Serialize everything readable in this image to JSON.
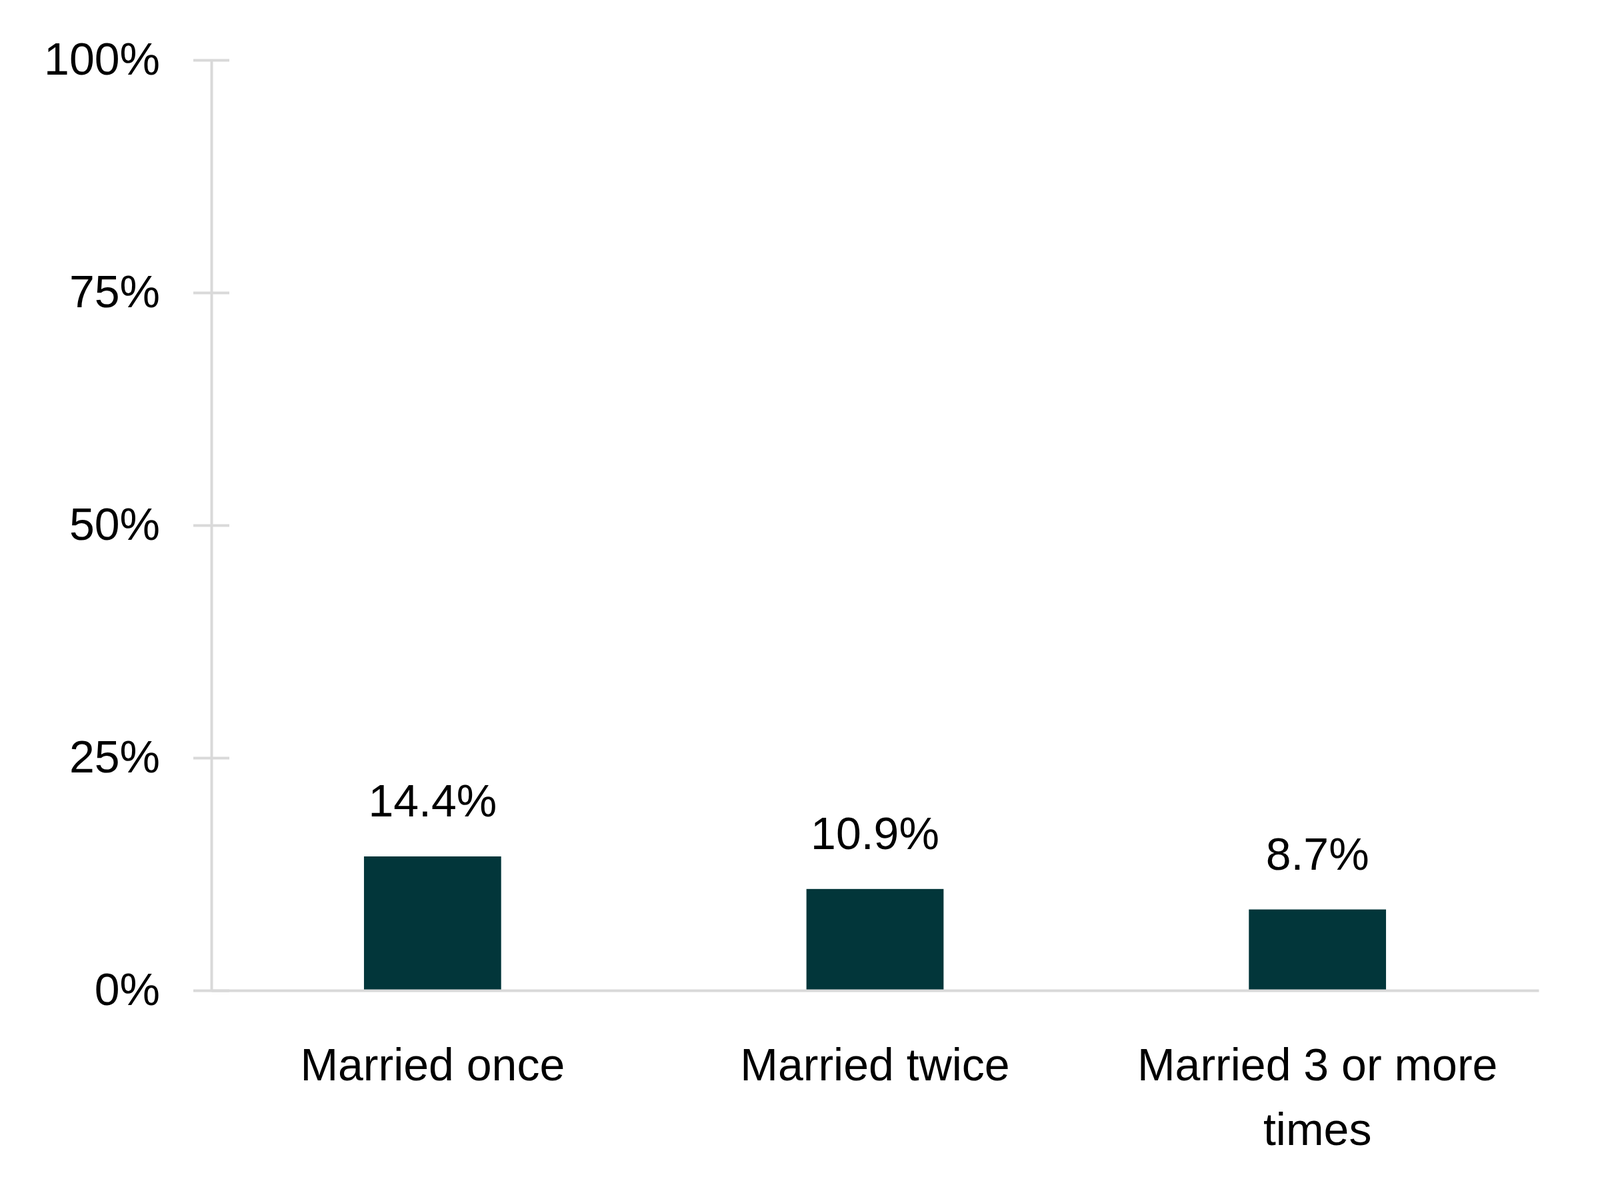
{
  "chart_data": {
    "type": "bar",
    "categories": [
      "Married once",
      "Married twice",
      "Married 3 or more times"
    ],
    "values": [
      14.4,
      10.9,
      8.7
    ],
    "value_labels": [
      "14.4%",
      "10.9%",
      "8.7%"
    ],
    "data_labels": true,
    "color": "#02363a",
    "ylim": [
      0,
      100
    ],
    "yticks": [
      {
        "value": 0,
        "label": "0%"
      },
      {
        "value": 25,
        "label": "25%"
      },
      {
        "value": 50,
        "label": "50%"
      },
      {
        "value": 75,
        "label": "75%"
      },
      {
        "value": 100,
        "label": "100%"
      }
    ],
    "grid": false
  }
}
